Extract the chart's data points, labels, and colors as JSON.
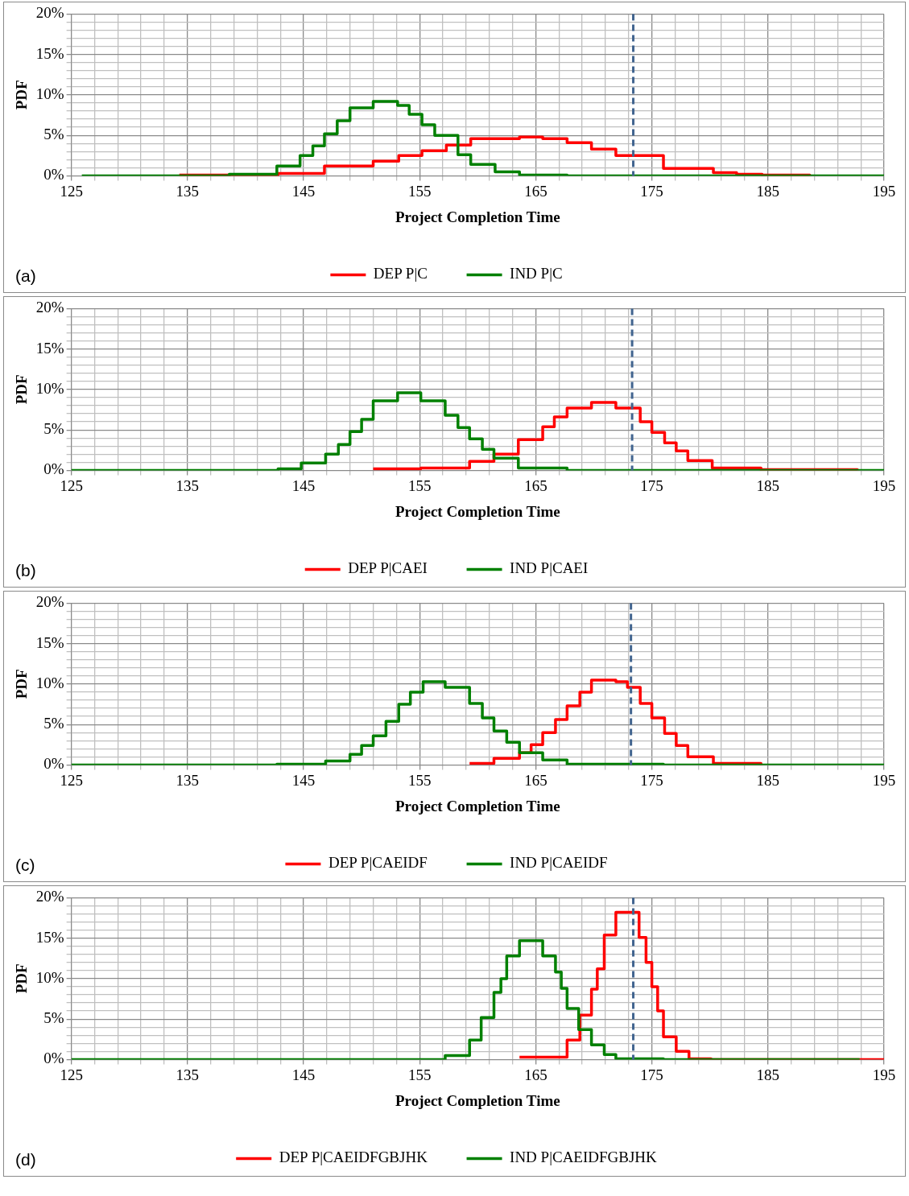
{
  "chart_data": [
    {
      "type": "step",
      "xlabel": "Project Completion Time",
      "ylabel": "PDF",
      "annotations": [
        "(a)"
      ],
      "legend": "bottom",
      "grid": true,
      "xlim": [
        125,
        195
      ],
      "xticks": [
        125,
        {
          "value": 127,
          "label": null
        },
        {
          "value": 129,
          "label": null
        },
        {
          "value": 131,
          "label": null
        },
        {
          "value": 133,
          "label": null
        },
        135,
        {
          "value": 137,
          "label": null
        },
        {
          "value": 139,
          "label": null
        },
        {
          "value": 141,
          "label": null
        },
        {
          "value": 143,
          "label": null
        },
        145,
        {
          "value": 147,
          "label": null
        },
        {
          "value": 149,
          "label": null
        },
        {
          "value": 151,
          "label": null
        },
        {
          "value": 153,
          "label": null
        },
        155,
        {
          "value": 157,
          "label": null
        },
        {
          "value": 159,
          "label": null
        },
        {
          "value": 161,
          "label": null
        },
        {
          "value": 163,
          "label": null
        },
        165,
        {
          "value": 167,
          "label": null
        },
        {
          "value": 169,
          "label": null
        },
        {
          "value": 171,
          "label": null
        },
        {
          "value": 173,
          "label": null
        },
        175,
        {
          "value": 177,
          "label": null
        },
        {
          "value": 179,
          "label": null
        },
        {
          "value": 181,
          "label": null
        },
        {
          "value": 183,
          "label": null
        },
        185,
        {
          "value": 187,
          "label": null
        },
        {
          "value": 189,
          "label": null
        },
        {
          "value": 191,
          "label": null
        },
        {
          "value": 193,
          "label": null
        },
        195
      ],
      "ylim": [
        0,
        20
      ],
      "yticks": [
        {
          "value": 0,
          "label": "0%"
        },
        {
          "value": 1,
          "label": null
        },
        {
          "value": 2,
          "label": null
        },
        {
          "value": 3,
          "label": null
        },
        {
          "value": 4,
          "label": null
        },
        {
          "value": 5,
          "label": "5%"
        },
        {
          "value": 6,
          "label": null
        },
        {
          "value": 7,
          "label": null
        },
        {
          "value": 8,
          "label": null
        },
        {
          "value": 9,
          "label": null
        },
        {
          "value": 10,
          "label": "10%"
        },
        {
          "value": 11,
          "label": null
        },
        {
          "value": 12,
          "label": null
        },
        {
          "value": 13,
          "label": null
        },
        {
          "value": 14,
          "label": null
        },
        {
          "value": 15,
          "label": "15%"
        },
        {
          "value": 16,
          "label": null
        },
        {
          "value": 17,
          "label": null
        },
        {
          "value": 18,
          "label": null
        },
        {
          "value": 19,
          "label": null
        },
        {
          "value": 20,
          "label": "20%"
        }
      ],
      "ref_lines": [
        {
          "axis": "x",
          "value": 173.4,
          "label": null,
          "color": "#41648f",
          "line_style": "dashed"
        }
      ],
      "series": [
        {
          "name": "DEP P|C",
          "color": "#ff0000",
          "x": [
            134.3,
            142.8,
            146.8,
            151.0,
            153.2,
            155.2,
            157.3,
            159.4,
            163.6,
            165.6,
            167.7,
            169.8,
            171.9,
            176.0,
            180.3,
            182.3,
            184.5,
            188.6
          ],
          "values": [
            0.1,
            0.3,
            1.2,
            1.8,
            2.5,
            3.1,
            3.8,
            4.6,
            4.8,
            4.6,
            4.1,
            3.3,
            2.5,
            0.9,
            0.4,
            0.2,
            0.1,
            0
          ]
        },
        {
          "name": "IND P|C",
          "color": "#008000",
          "x": [
            125.9,
            138.6,
            142.7,
            144.7,
            145.8,
            146.8,
            147.9,
            149.0,
            151.0,
            153.1,
            154.1,
            155.2,
            156.3,
            158.3,
            159.4,
            161.5,
            163.6,
            167.7,
            195
          ],
          "values": [
            0,
            0.2,
            1.2,
            2.5,
            3.7,
            5.2,
            6.8,
            8.4,
            9.2,
            8.7,
            7.6,
            6.3,
            5.0,
            2.6,
            1.4,
            0.5,
            0.1,
            0,
            0
          ]
        }
      ]
    },
    {
      "type": "step",
      "xlabel": "Project Completion Time",
      "ylabel": "PDF",
      "annotations": [
        "(b)"
      ],
      "legend": "bottom",
      "grid": true,
      "xlim": [
        125,
        195
      ],
      "xticks": [
        125,
        {
          "value": 127,
          "label": null
        },
        {
          "value": 129,
          "label": null
        },
        {
          "value": 131,
          "label": null
        },
        {
          "value": 133,
          "label": null
        },
        135,
        {
          "value": 137,
          "label": null
        },
        {
          "value": 139,
          "label": null
        },
        {
          "value": 141,
          "label": null
        },
        {
          "value": 143,
          "label": null
        },
        145,
        {
          "value": 147,
          "label": null
        },
        {
          "value": 149,
          "label": null
        },
        {
          "value": 151,
          "label": null
        },
        {
          "value": 153,
          "label": null
        },
        155,
        {
          "value": 157,
          "label": null
        },
        {
          "value": 159,
          "label": null
        },
        {
          "value": 161,
          "label": null
        },
        {
          "value": 163,
          "label": null
        },
        165,
        {
          "value": 167,
          "label": null
        },
        {
          "value": 169,
          "label": null
        },
        {
          "value": 171,
          "label": null
        },
        {
          "value": 173,
          "label": null
        },
        175,
        {
          "value": 177,
          "label": null
        },
        {
          "value": 179,
          "label": null
        },
        {
          "value": 181,
          "label": null
        },
        {
          "value": 183,
          "label": null
        },
        185,
        {
          "value": 187,
          "label": null
        },
        {
          "value": 189,
          "label": null
        },
        {
          "value": 191,
          "label": null
        },
        {
          "value": 193,
          "label": null
        },
        195
      ],
      "ylim": [
        0,
        20
      ],
      "yticks": [
        {
          "value": 0,
          "label": "0%"
        },
        {
          "value": 1,
          "label": null
        },
        {
          "value": 2,
          "label": null
        },
        {
          "value": 3,
          "label": null
        },
        {
          "value": 4,
          "label": null
        },
        {
          "value": 5,
          "label": "5%"
        },
        {
          "value": 6,
          "label": null
        },
        {
          "value": 7,
          "label": null
        },
        {
          "value": 8,
          "label": null
        },
        {
          "value": 9,
          "label": null
        },
        {
          "value": 10,
          "label": "10%"
        },
        {
          "value": 11,
          "label": null
        },
        {
          "value": 12,
          "label": null
        },
        {
          "value": 13,
          "label": null
        },
        {
          "value": 14,
          "label": null
        },
        {
          "value": 15,
          "label": "15%"
        },
        {
          "value": 16,
          "label": null
        },
        {
          "value": 17,
          "label": null
        },
        {
          "value": 18,
          "label": null
        },
        {
          "value": 19,
          "label": null
        },
        {
          "value": 20,
          "label": "20%"
        }
      ],
      "ref_lines": [
        {
          "axis": "x",
          "value": 173.3,
          "label": null,
          "color": "#41648f",
          "line_style": "dashed"
        }
      ],
      "series": [
        {
          "name": "DEP P|CAEI",
          "color": "#ff0000",
          "x": [
            151.0,
            155.1,
            159.3,
            161.4,
            163.5,
            165.6,
            166.6,
            167.7,
            169.8,
            171.9,
            174.0,
            175.0,
            176.1,
            177.1,
            178.1,
            180.2,
            184.4,
            192.7
          ],
          "values": [
            0.2,
            0.3,
            1.1,
            2.0,
            3.8,
            5.4,
            6.6,
            7.7,
            8.4,
            7.7,
            6.0,
            4.7,
            3.4,
            2.4,
            1.2,
            0.3,
            0.1,
            0
          ]
        },
        {
          "name": "IND P|CAEI",
          "color": "#008000",
          "x": [
            125,
            142.8,
            144.8,
            146.9,
            148.0,
            149.0,
            150.0,
            151.0,
            153.1,
            155.1,
            157.2,
            158.3,
            159.3,
            160.4,
            161.4,
            163.5,
            167.7,
            195
          ],
          "values": [
            0,
            0.2,
            0.9,
            2.0,
            3.2,
            4.8,
            6.3,
            8.6,
            9.6,
            8.6,
            6.8,
            5.3,
            3.9,
            2.6,
            1.5,
            0.3,
            0,
            0
          ]
        }
      ]
    },
    {
      "type": "step",
      "xlabel": "Project Completion Time",
      "ylabel": "PDF",
      "annotations": [
        "(c)"
      ],
      "legend": "bottom",
      "grid": true,
      "xlim": [
        125,
        195
      ],
      "xticks": [
        125,
        {
          "value": 127,
          "label": null
        },
        {
          "value": 129,
          "label": null
        },
        {
          "value": 131,
          "label": null
        },
        {
          "value": 133,
          "label": null
        },
        135,
        {
          "value": 137,
          "label": null
        },
        {
          "value": 139,
          "label": null
        },
        {
          "value": 141,
          "label": null
        },
        {
          "value": 143,
          "label": null
        },
        145,
        {
          "value": 147,
          "label": null
        },
        {
          "value": 149,
          "label": null
        },
        {
          "value": 151,
          "label": null
        },
        {
          "value": 153,
          "label": null
        },
        155,
        {
          "value": 157,
          "label": null
        },
        {
          "value": 159,
          "label": null
        },
        {
          "value": 161,
          "label": null
        },
        {
          "value": 163,
          "label": null
        },
        165,
        {
          "value": 167,
          "label": null
        },
        {
          "value": 169,
          "label": null
        },
        {
          "value": 171,
          "label": null
        },
        {
          "value": 173,
          "label": null
        },
        175,
        {
          "value": 177,
          "label": null
        },
        {
          "value": 179,
          "label": null
        },
        {
          "value": 181,
          "label": null
        },
        {
          "value": 183,
          "label": null
        },
        185,
        {
          "value": 187,
          "label": null
        },
        {
          "value": 189,
          "label": null
        },
        {
          "value": 191,
          "label": null
        },
        {
          "value": 193,
          "label": null
        },
        195
      ],
      "ylim": [
        0,
        20
      ],
      "yticks": [
        {
          "value": 0,
          "label": "0%"
        },
        {
          "value": 1,
          "label": null
        },
        {
          "value": 2,
          "label": null
        },
        {
          "value": 3,
          "label": null
        },
        {
          "value": 4,
          "label": null
        },
        {
          "value": 5,
          "label": "5%"
        },
        {
          "value": 6,
          "label": null
        },
        {
          "value": 7,
          "label": null
        },
        {
          "value": 8,
          "label": null
        },
        {
          "value": 9,
          "label": null
        },
        {
          "value": 10,
          "label": "10%"
        },
        {
          "value": 11,
          "label": null
        },
        {
          "value": 12,
          "label": null
        },
        {
          "value": 13,
          "label": null
        },
        {
          "value": 14,
          "label": null
        },
        {
          "value": 15,
          "label": "15%"
        },
        {
          "value": 16,
          "label": null
        },
        {
          "value": 17,
          "label": null
        },
        {
          "value": 18,
          "label": null
        },
        {
          "value": 19,
          "label": null
        },
        {
          "value": 20,
          "label": "20%"
        }
      ],
      "ref_lines": [
        {
          "axis": "x",
          "value": 173.2,
          "label": null,
          "color": "#41648f",
          "line_style": "dashed"
        }
      ],
      "series": [
        {
          "name": "DEP P|CAEIDF",
          "color": "#ff0000",
          "x": [
            159.3,
            161.4,
            163.6,
            164.6,
            165.6,
            166.7,
            167.7,
            168.8,
            169.8,
            171.9,
            172.9,
            174.0,
            175.0,
            176.1,
            177.1,
            178.1,
            180.3,
            184.4
          ],
          "values": [
            0.2,
            0.8,
            1.5,
            2.5,
            4.0,
            5.6,
            7.3,
            9.0,
            10.5,
            10.3,
            9.6,
            7.6,
            5.8,
            3.9,
            2.4,
            1.0,
            0.2,
            0
          ]
        },
        {
          "name": "IND P|CAEIDF",
          "color": "#008000",
          "x": [
            125,
            142.7,
            146.9,
            149.0,
            150.0,
            151.0,
            152.1,
            153.2,
            154.2,
            155.3,
            157.2,
            159.3,
            160.4,
            161.4,
            162.5,
            163.6,
            165.6,
            167.7,
            176.0,
            195
          ],
          "values": [
            0,
            0.1,
            0.5,
            1.3,
            2.4,
            3.6,
            5.4,
            7.5,
            9.0,
            10.3,
            9.6,
            7.6,
            5.8,
            4.2,
            2.8,
            1.5,
            0.6,
            0.1,
            0,
            0
          ]
        }
      ]
    },
    {
      "type": "step",
      "xlabel": "Project Completion Time",
      "ylabel": "PDF",
      "annotations": [
        "(d)"
      ],
      "legend": "bottom",
      "grid": true,
      "xlim": [
        125,
        195
      ],
      "xticks": [
        125,
        {
          "value": 127,
          "label": null
        },
        {
          "value": 129,
          "label": null
        },
        {
          "value": 131,
          "label": null
        },
        {
          "value": 133,
          "label": null
        },
        135,
        {
          "value": 137,
          "label": null
        },
        {
          "value": 139,
          "label": null
        },
        {
          "value": 141,
          "label": null
        },
        {
          "value": 143,
          "label": null
        },
        145,
        {
          "value": 147,
          "label": null
        },
        {
          "value": 149,
          "label": null
        },
        {
          "value": 151,
          "label": null
        },
        {
          "value": 153,
          "label": null
        },
        155,
        {
          "value": 157,
          "label": null
        },
        {
          "value": 159,
          "label": null
        },
        {
          "value": 161,
          "label": null
        },
        {
          "value": 163,
          "label": null
        },
        165,
        {
          "value": 167,
          "label": null
        },
        {
          "value": 169,
          "label": null
        },
        {
          "value": 171,
          "label": null
        },
        {
          "value": 173,
          "label": null
        },
        175,
        {
          "value": 177,
          "label": null
        },
        {
          "value": 179,
          "label": null
        },
        {
          "value": 181,
          "label": null
        },
        {
          "value": 183,
          "label": null
        },
        185,
        {
          "value": 187,
          "label": null
        },
        {
          "value": 189,
          "label": null
        },
        {
          "value": 191,
          "label": null
        },
        {
          "value": 193,
          "label": null
        },
        195
      ],
      "ylim": [
        0,
        20
      ],
      "yticks": [
        {
          "value": 0,
          "label": "0%"
        },
        {
          "value": 1,
          "label": null
        },
        {
          "value": 2,
          "label": null
        },
        {
          "value": 3,
          "label": null
        },
        {
          "value": 4,
          "label": null
        },
        {
          "value": 5,
          "label": "5%"
        },
        {
          "value": 6,
          "label": null
        },
        {
          "value": 7,
          "label": null
        },
        {
          "value": 8,
          "label": null
        },
        {
          "value": 9,
          "label": null
        },
        {
          "value": 10,
          "label": "10%"
        },
        {
          "value": 11,
          "label": null
        },
        {
          "value": 12,
          "label": null
        },
        {
          "value": 13,
          "label": null
        },
        {
          "value": 14,
          "label": null
        },
        {
          "value": 15,
          "label": "15%"
        },
        {
          "value": 16,
          "label": null
        },
        {
          "value": 17,
          "label": null
        },
        {
          "value": 18,
          "label": null
        },
        {
          "value": 19,
          "label": null
        },
        {
          "value": 20,
          "label": "20%"
        }
      ],
      "ref_lines": [
        {
          "axis": "x",
          "value": 173.4,
          "label": null,
          "color": "#41648f",
          "line_style": "dashed"
        }
      ],
      "series": [
        {
          "name": "DEP P|CAEIDFGBJHK",
          "color": "#ff0000",
          "x": [
            163.6,
            167.7,
            168.8,
            169.8,
            170.3,
            170.9,
            171.9,
            173.9,
            174.5,
            175.0,
            175.5,
            176.0,
            177.1,
            178.2,
            180.1,
            192.9,
            195
          ],
          "values": [
            0.3,
            2.4,
            5.5,
            8.7,
            11.2,
            15.4,
            18.2,
            15.1,
            12.0,
            9.0,
            6.0,
            2.8,
            1.0,
            0.1,
            0,
            0,
            0
          ]
        },
        {
          "name": "IND P|CAEIDFGBJHK",
          "color": "#008000",
          "x": [
            125,
            157.2,
            159.3,
            160.3,
            161.4,
            162.0,
            162.5,
            163.6,
            165.6,
            166.7,
            167.2,
            167.7,
            168.7,
            169.8,
            170.9,
            171.9,
            176.0,
            192.9
          ],
          "values": [
            0,
            0.5,
            2.4,
            5.2,
            8.3,
            10.0,
            12.8,
            14.7,
            12.8,
            10.8,
            8.8,
            6.3,
            3.7,
            1.8,
            0.6,
            0.1,
            0,
            0
          ]
        }
      ]
    }
  ]
}
